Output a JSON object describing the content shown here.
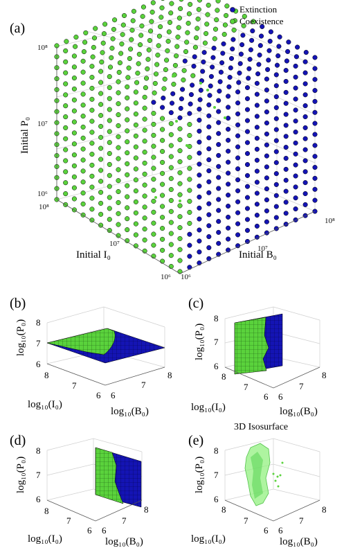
{
  "colors": {
    "extinction": "#1414b4",
    "coexistence": "#5ad23c",
    "isosurface": "#7cf07a",
    "grid": "#d2d2d2",
    "axis": "#555555"
  },
  "chart_data": [
    {
      "panel": "(a)",
      "type": "scatter",
      "legend": [
        "Extinction",
        "Coexistence"
      ],
      "legend_position": "top-right",
      "xlabel": "Initial B₀",
      "ylabel": "Initial I₀",
      "zlabel": "Initial P₀",
      "ticks": {
        "B": [
          "10⁶",
          "10⁷",
          "10⁸"
        ],
        "I": [
          "10⁶",
          "10⁷",
          "10⁸"
        ],
        "P": [
          "10⁶",
          "10⁷",
          "10⁸"
        ]
      },
      "xlim": [
        1000000,
        100000000
      ],
      "ylim": [
        1000000,
        100000000
      ],
      "zlim": [
        1000000,
        100000000
      ],
      "scale": "log",
      "grid": true
    },
    {
      "panel": "(b)",
      "type": "heatmap",
      "xlabel": "log₁₀(B₀)",
      "ylabel": "log₁₀(I₀)",
      "zlabel": "log₁₀(P₀)",
      "xticks": [
        "6",
        "7",
        "8"
      ],
      "yticks": [
        "6",
        "7",
        "8"
      ],
      "zticks": [
        "6",
        "7",
        "8"
      ],
      "slice": "horizontal",
      "series": [
        "Extinction",
        "Coexistence"
      ]
    },
    {
      "panel": "(c)",
      "type": "heatmap",
      "xlabel": "log₁₀(B₀)",
      "ylabel": "log₁₀(I₀)",
      "zlabel": "log₁₀(P₀)",
      "xticks": [
        "6",
        "7",
        "8"
      ],
      "yticks": [
        "6",
        "7",
        "8"
      ],
      "zticks": [
        "6",
        "7",
        "8"
      ],
      "slice": "vertical, constant I₀",
      "series": [
        "Extinction",
        "Coexistence"
      ]
    },
    {
      "panel": "(d)",
      "type": "heatmap",
      "xlabel": "log₁₀(B₀)",
      "ylabel": "log₁₀(I₀)",
      "zlabel": "log₁₀(P₀)",
      "xticks": [
        "6",
        "7",
        "8"
      ],
      "yticks": [
        "6",
        "7",
        "8"
      ],
      "zticks": [
        "6",
        "7",
        "8"
      ],
      "slice": "vertical, constant B₀",
      "series": [
        "Extinction",
        "Coexistence"
      ]
    },
    {
      "panel": "(e)",
      "type": "scatter",
      "title": "3D Isosurface",
      "xlabel": "log₁₀(B₀)",
      "ylabel": "log₁₀(I₀)",
      "zlabel": "log₁₀(P₀)",
      "xticks": [
        "6",
        "7",
        "8"
      ],
      "yticks": [
        "6",
        "7",
        "8"
      ],
      "zticks": [
        "6",
        "7",
        "8"
      ]
    }
  ]
}
